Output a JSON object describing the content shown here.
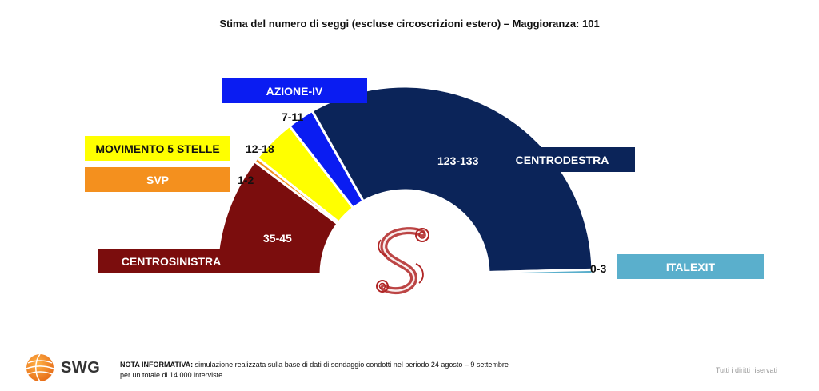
{
  "title": "Stima del numero di seggi (escluse circoscrizioni estero) – Maggioranza: 101",
  "chart_data": {
    "type": "pie",
    "subtype": "half-donut parliament",
    "title": "Stima del numero di seggi (escluse circoscrizioni estero) – Maggioranza: 101",
    "series": [
      {
        "name": "CENTROSINISTRA",
        "range": "35-45",
        "value": 40,
        "color": "#7b0d0d",
        "label_color": "#7b0d0d",
        "label_text_color": "#ffffff"
      },
      {
        "name": "SVP",
        "range": "1-2",
        "value": 1.5,
        "color": "#f4901e",
        "label_color": "#f4901e",
        "label_text_color": "#ffffff"
      },
      {
        "name": "MOVIMENTO 5 STELLE",
        "range": "12-18",
        "value": 15,
        "color": "#ffff00",
        "label_color": "#ffff00",
        "label_text_color": "#111111"
      },
      {
        "name": "AZIONE-IV",
        "range": "7-11",
        "value": 9,
        "color": "#0a1cf2",
        "label_color": "#0a1cf2",
        "label_text_color": "#ffffff"
      },
      {
        "name": "CENTRODESTRA",
        "range": "123-133",
        "value": 128,
        "color": "#0b2459",
        "label_color": "#0b2459",
        "label_text_color": "#ffffff"
      },
      {
        "name": "ITALEXIT",
        "range": "0-3",
        "value": 1.5,
        "color": "#5aafcc",
        "label_color": "#5aafcc",
        "label_text_color": "#ffffff"
      }
    ],
    "center_logo": "senato-s-monogram"
  },
  "footer": {
    "brand": "SWG",
    "brand_icon": "swg-globe-icon",
    "note_label": "NOTA INFORMATIVA:",
    "note_line1": " simulazione realizzata sulla base di dati di sondaggio condotti nel periodo 24 agosto – 9 settembre",
    "note_line2": "per un totale di 14.000 interviste",
    "rights": "Tutti i diritti riservati"
  }
}
